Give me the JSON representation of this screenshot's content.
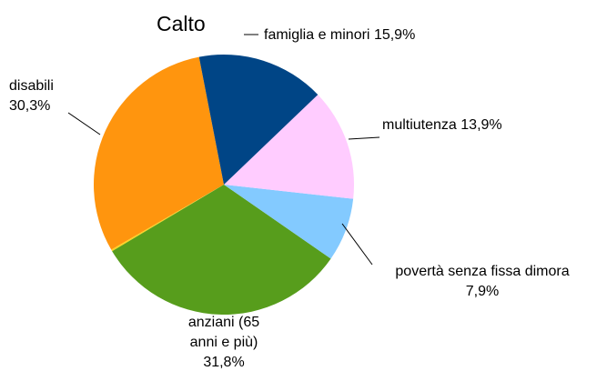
{
  "chart_data": {
    "type": "pie",
    "title": "Calto",
    "categories": [
      "famiglia e minori",
      "multiutenza",
      "povertà senza fissa dimora",
      "anziani (65 anni e più)",
      null,
      "disabili"
    ],
    "values": [
      15.9,
      13.9,
      7.9,
      31.8,
      0.2,
      30.3
    ],
    "value_labels": [
      "15,9%",
      "13,9%",
      "7,9%",
      "31,8%",
      null,
      "30,3%"
    ],
    "colors": [
      "#004586",
      "#ffccff",
      "#83caff",
      "#579d1c",
      "#ffd320",
      "#ff950e"
    ]
  }
}
